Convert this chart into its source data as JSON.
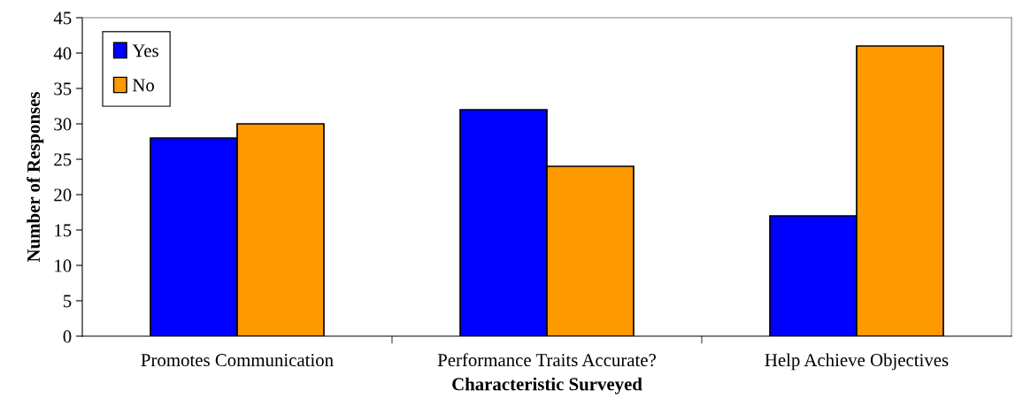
{
  "chart_data": {
    "type": "bar",
    "xlabel": "Characteristic Surveyed",
    "ylabel": "Number of Responses",
    "categories": [
      "Promotes Communication",
      "Performance Traits Accurate?",
      "Help Achieve Objectives"
    ],
    "series": [
      {
        "name": "Yes",
        "color": "#0000ff",
        "values": [
          28,
          32,
          17
        ]
      },
      {
        "name": "No",
        "color": "#ff9900",
        "values": [
          30,
          24,
          41
        ]
      }
    ],
    "ylim": [
      0,
      45
    ],
    "yticks": [
      0,
      5,
      10,
      15,
      20,
      25,
      30,
      35,
      40,
      45
    ],
    "grid": false,
    "legend": "top left"
  }
}
